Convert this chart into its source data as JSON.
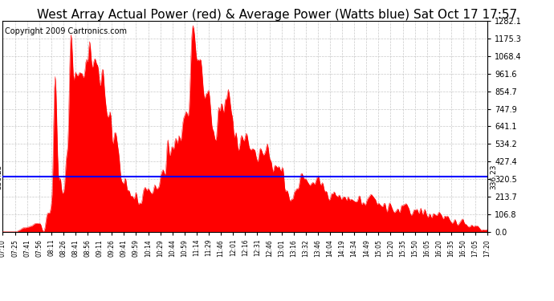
{
  "title": "West Array Actual Power (red) & Average Power (Watts blue) Sat Oct 17 17:57",
  "copyright": "Copyright 2009 Cartronics.com",
  "avg_power": 336.23,
  "ymax": 1282.1,
  "ymin": 0.0,
  "yticks": [
    0.0,
    106.8,
    213.7,
    320.5,
    427.4,
    534.2,
    641.1,
    747.9,
    854.7,
    961.6,
    1068.4,
    1175.3,
    1282.1
  ],
  "xtick_labels": [
    "07:10",
    "07:25",
    "07:41",
    "07:56",
    "08:11",
    "08:26",
    "08:41",
    "08:56",
    "09:11",
    "09:26",
    "09:41",
    "09:59",
    "10:14",
    "10:29",
    "10:44",
    "10:59",
    "11:14",
    "11:29",
    "11:46",
    "12:01",
    "12:16",
    "12:31",
    "12:46",
    "13:01",
    "13:16",
    "13:32",
    "13:46",
    "14:04",
    "14:19",
    "14:34",
    "14:49",
    "15:05",
    "15:20",
    "15:35",
    "15:50",
    "16:05",
    "16:20",
    "16:35",
    "16:50",
    "17:05",
    "17:20"
  ],
  "fill_color": "#FF0000",
  "line_color": "#0000FF",
  "bg_color": "#FFFFFF",
  "grid_color": "#BBBBBB",
  "title_fontsize": 11,
  "copyright_fontsize": 7,
  "tick_fontsize": 7,
  "xtick_fontsize": 5.5
}
